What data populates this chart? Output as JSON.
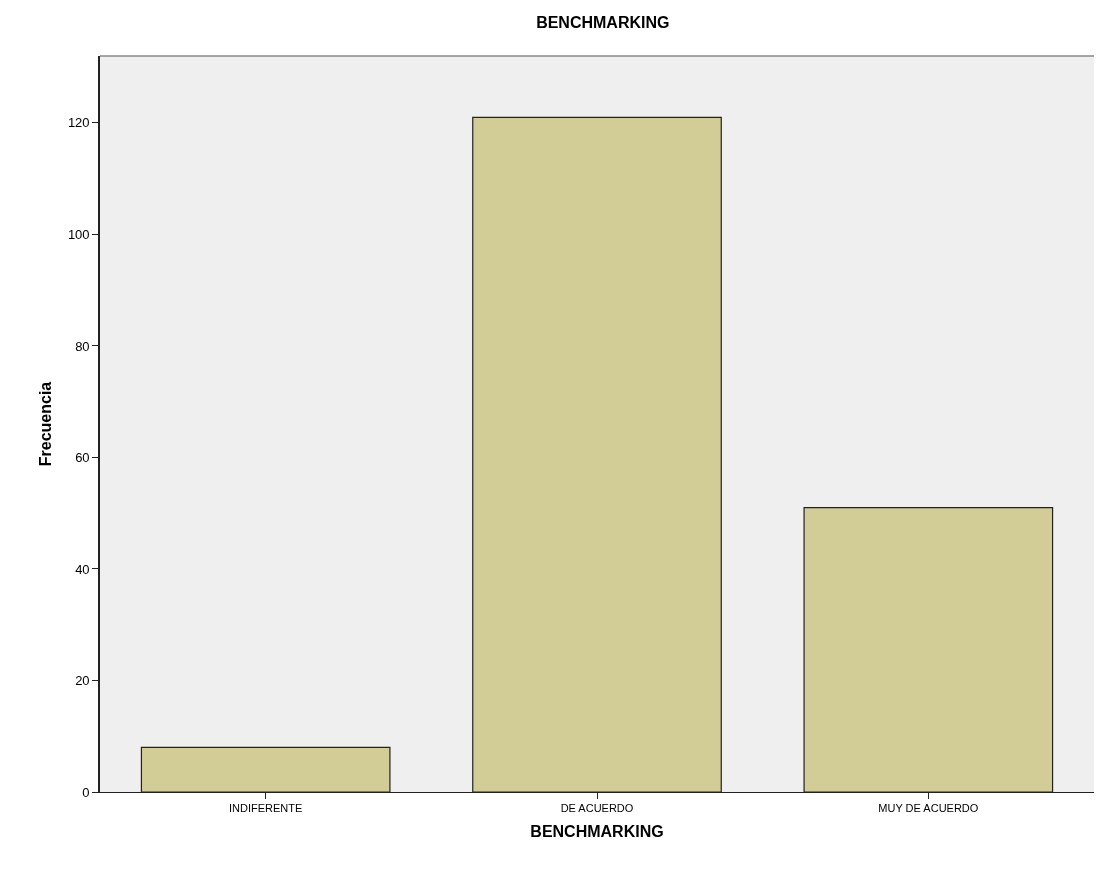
{
  "chart_data": {
    "type": "bar",
    "title": "BENCHMARKING",
    "xlabel": "BENCHMARKING",
    "ylabel": "Frecuencia",
    "categories": [
      "INDIFERENTE",
      "DE ACUERDO",
      "MUY DE ACUERDO"
    ],
    "values": [
      8,
      121,
      51
    ],
    "color": "#d2cc96",
    "ylim": [
      0,
      132
    ],
    "yticks": [
      0,
      20,
      40,
      60,
      80,
      100,
      120
    ],
    "grid": false
  }
}
